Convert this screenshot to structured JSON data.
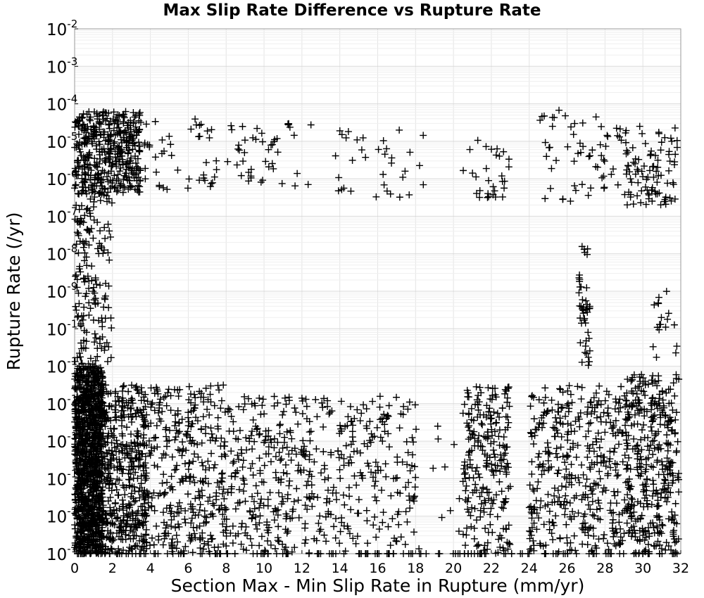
{
  "chart_data": {
    "type": "scatter",
    "title": "Max Slip Rate Difference vs Rupture Rate",
    "xlabel": "Section Max - Min Slip Rate in Rupture (mm/yr)",
    "ylabel": "Rupture Rate (/yr)",
    "xlim": [
      0,
      32
    ],
    "ylim": [
      1e-16,
      0.01
    ],
    "y_scale": "log",
    "x_ticks": [
      0,
      2,
      4,
      6,
      8,
      10,
      12,
      14,
      16,
      18,
      20,
      22,
      24,
      26,
      28,
      30,
      32
    ],
    "y_tick_base": "10",
    "y_tick_exponents": [
      "-16",
      "-15",
      "-14",
      "-13",
      "-12",
      "-11",
      "-10",
      "-9",
      "-8",
      "-7",
      "-6",
      "-5",
      "-4",
      "-3",
      "-2"
    ],
    "grid": true,
    "marker": "+",
    "marker_color": "#000000",
    "clusters": [
      {
        "x": [
          0.0,
          1.5
        ],
        "log10_y": [
          -16.0,
          -11.0
        ],
        "n": 900
      },
      {
        "x": [
          0.0,
          3.8
        ],
        "log10_y": [
          -16.0,
          -11.5
        ],
        "n": 700
      },
      {
        "x": [
          0.0,
          3.5
        ],
        "log10_y": [
          -6.4,
          -4.2
        ],
        "n": 420
      },
      {
        "x": [
          0.0,
          2.0
        ],
        "log10_y": [
          -11.0,
          -6.0
        ],
        "n": 170
      },
      {
        "x": [
          3.5,
          8.0
        ],
        "log10_y": [
          -16.0,
          -11.5
        ],
        "n": 360
      },
      {
        "x": [
          3.6,
          7.5
        ],
        "log10_y": [
          -6.3,
          -4.4
        ],
        "n": 45
      },
      {
        "x": [
          8.0,
          12.5
        ],
        "log10_y": [
          -16.0,
          -11.8
        ],
        "n": 260
      },
      {
        "x": [
          8.0,
          12.5
        ],
        "log10_y": [
          -6.2,
          -4.5
        ],
        "n": 45
      },
      {
        "x": [
          12.5,
          18.0
        ],
        "log10_y": [
          -16.0,
          -11.8
        ],
        "n": 220
      },
      {
        "x": [
          13.5,
          18.5
        ],
        "log10_y": [
          -6.5,
          -4.7
        ],
        "n": 35
      },
      {
        "x": [
          18.0,
          21.0
        ],
        "log10_y": [
          -16.0,
          -12.5
        ],
        "n": 15
      },
      {
        "x": [
          20.5,
          23.0
        ],
        "log10_y": [
          -16.0,
          -11.5
        ],
        "n": 230
      },
      {
        "x": [
          20.5,
          23.0
        ],
        "log10_y": [
          -6.6,
          -4.6
        ],
        "n": 30
      },
      {
        "x": [
          24.0,
          29.0
        ],
        "log10_y": [
          -16.0,
          -11.5
        ],
        "n": 380
      },
      {
        "x": [
          24.5,
          29.0
        ],
        "log10_y": [
          -6.6,
          -4.1
        ],
        "n": 60
      },
      {
        "x": [
          26.6,
          27.2
        ],
        "log10_y": [
          -11.0,
          -7.8
        ],
        "n": 45
      },
      {
        "x": [
          29.0,
          31.9
        ],
        "log10_y": [
          -16.0,
          -11.2
        ],
        "n": 380
      },
      {
        "x": [
          29.0,
          31.9
        ],
        "log10_y": [
          -6.7,
          -4.6
        ],
        "n": 95
      },
      {
        "x": [
          30.5,
          31.9
        ],
        "log10_y": [
          -10.8,
          -9.0
        ],
        "n": 18
      },
      {
        "x": [
          0.0,
          32.0
        ],
        "log10_y": [
          -16.0,
          -16.0
        ],
        "n": 160
      }
    ]
  }
}
